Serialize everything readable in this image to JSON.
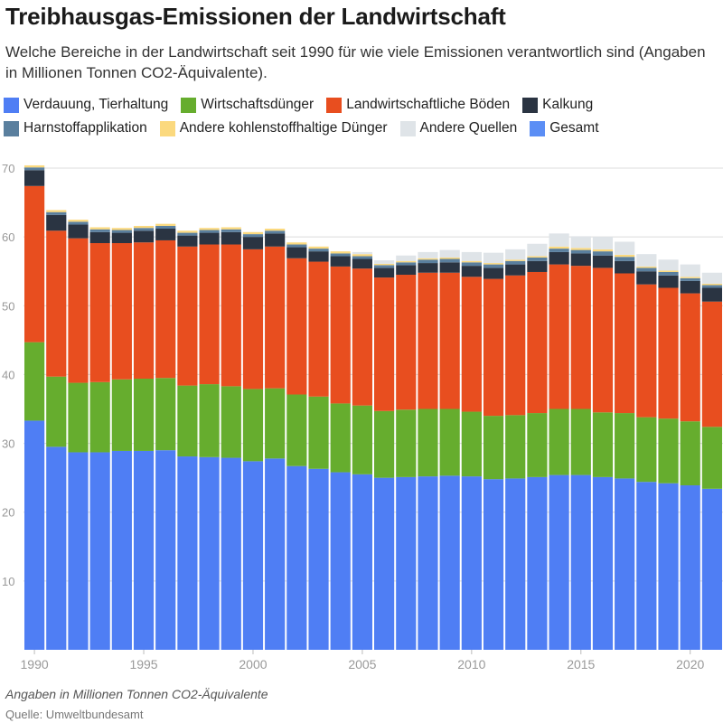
{
  "title": "Treibhausgas-Emissionen der Landwirtschaft",
  "subtitle": "Welche Bereiche in der Landwirtschaft seit 1990 für wie viele Emissionen verantwortlich sind (Angaben in Millionen Tonnen CO2-Äquivalente).",
  "footnote": "Angaben in Millionen Tonnen CO2-Äquivalente",
  "source": "Quelle: Umweltbundesamt",
  "colors": {
    "verdauung": "#4f7ef4",
    "duenger": "#66ad2e",
    "boeden": "#e84e1f",
    "kalkung": "#2a3442",
    "harnstoff": "#5a7f9e",
    "andere_duenger": "#fbd97e",
    "andere_quellen": "#dfe4e8",
    "gesamt": "#5b8ef5",
    "grid": "#dcdcdc",
    "tick": "#999999"
  },
  "legend": [
    {
      "label": "Verdauung, Tierhaltung",
      "color": "#4f7ef4"
    },
    {
      "label": "Wirtschaftsdünger",
      "color": "#66ad2e"
    },
    {
      "label": "Landwirtschaftliche Böden",
      "color": "#e84e1f"
    },
    {
      "label": "Kalkung",
      "color": "#2a3442"
    },
    {
      "label": "Harnstoffapplikation",
      "color": "#5a7f9e"
    },
    {
      "label": "Andere kohlenstoffhaltige Dünger",
      "color": "#fbd97e"
    },
    {
      "label": "Andere Quellen",
      "color": "#dfe4e8"
    },
    {
      "label": "Gesamt",
      "color": "#5b8ef5"
    }
  ],
  "chart_data": {
    "type": "bar",
    "stacked": true,
    "title": "Treibhausgas-Emissionen der Landwirtschaft",
    "xlabel": "",
    "ylabel": "",
    "ylim": [
      0,
      70
    ],
    "yticks": [
      10,
      20,
      30,
      40,
      50,
      60,
      70
    ],
    "xticks": [
      1990,
      1995,
      2000,
      2005,
      2010,
      2015,
      2020
    ],
    "grid": true,
    "legend_position": "top",
    "categories": [
      1990,
      1991,
      1992,
      1993,
      1994,
      1995,
      1996,
      1997,
      1998,
      1999,
      2000,
      2001,
      2002,
      2003,
      2004,
      2005,
      2006,
      2007,
      2008,
      2009,
      2010,
      2011,
      2012,
      2013,
      2014,
      2015,
      2016,
      2017,
      2018,
      2019,
      2020,
      2021
    ],
    "series": [
      {
        "name": "Verdauung, Tierhaltung",
        "color": "#4f7ef4",
        "values": [
          33.3,
          29.5,
          28.7,
          28.7,
          28.9,
          28.9,
          29.0,
          28.1,
          28.0,
          27.9,
          27.4,
          27.8,
          26.7,
          26.3,
          25.8,
          25.5,
          25.0,
          25.1,
          25.2,
          25.3,
          25.2,
          24.8,
          24.9,
          25.1,
          25.4,
          25.4,
          25.1,
          24.9,
          24.4,
          24.2,
          23.9,
          23.4
        ]
      },
      {
        "name": "Wirtschaftsdünger",
        "color": "#66ad2e",
        "values": [
          11.4,
          10.2,
          10.1,
          10.2,
          10.4,
          10.5,
          10.5,
          10.3,
          10.6,
          10.4,
          10.5,
          10.2,
          10.4,
          10.5,
          10.0,
          10.0,
          9.7,
          9.8,
          9.8,
          9.7,
          9.4,
          9.2,
          9.2,
          9.3,
          9.6,
          9.6,
          9.4,
          9.5,
          9.4,
          9.4,
          9.3,
          9.0
        ]
      },
      {
        "name": "Landwirtschaftliche Böden",
        "color": "#e84e1f",
        "values": [
          22.7,
          21.2,
          21.0,
          20.2,
          19.8,
          19.8,
          20.0,
          20.2,
          20.3,
          20.6,
          20.3,
          20.6,
          19.8,
          19.6,
          19.9,
          19.9,
          19.4,
          19.6,
          19.8,
          19.8,
          19.6,
          19.9,
          20.3,
          20.5,
          21.0,
          20.8,
          21.0,
          20.3,
          19.3,
          19.0,
          18.6,
          18.2
        ]
      },
      {
        "name": "Kalkung",
        "color": "#2a3442",
        "values": [
          2.3,
          2.3,
          2.0,
          1.6,
          1.5,
          1.7,
          1.7,
          1.6,
          1.7,
          1.8,
          1.8,
          1.9,
          1.6,
          1.5,
          1.5,
          1.4,
          1.4,
          1.4,
          1.4,
          1.5,
          1.6,
          1.6,
          1.6,
          1.6,
          1.8,
          1.8,
          1.8,
          1.8,
          1.9,
          1.8,
          1.8,
          2.0
        ]
      },
      {
        "name": "Harnstoffapplikation",
        "color": "#5a7f9e",
        "values": [
          0.4,
          0.4,
          0.4,
          0.4,
          0.4,
          0.4,
          0.4,
          0.4,
          0.4,
          0.4,
          0.4,
          0.4,
          0.4,
          0.4,
          0.4,
          0.4,
          0.4,
          0.4,
          0.5,
          0.5,
          0.5,
          0.5,
          0.5,
          0.5,
          0.5,
          0.5,
          0.6,
          0.6,
          0.5,
          0.5,
          0.4,
          0.4
        ]
      },
      {
        "name": "Andere kohlenstoffhaltige Dünger",
        "color": "#fbd97e",
        "values": [
          0.3,
          0.3,
          0.3,
          0.3,
          0.3,
          0.3,
          0.3,
          0.3,
          0.3,
          0.3,
          0.3,
          0.3,
          0.3,
          0.3,
          0.3,
          0.3,
          0.2,
          0.2,
          0.2,
          0.2,
          0.2,
          0.2,
          0.2,
          0.2,
          0.3,
          0.3,
          0.3,
          0.3,
          0.2,
          0.2,
          0.2,
          0.2
        ]
      },
      {
        "name": "Andere Quellen",
        "color": "#dfe4e8",
        "values": [
          0.0,
          0.0,
          0.0,
          0.0,
          0.0,
          0.0,
          0.0,
          0.0,
          0.0,
          0.0,
          0.0,
          0.0,
          0.0,
          0.0,
          0.0,
          0.3,
          0.5,
          0.8,
          0.9,
          1.1,
          1.3,
          1.5,
          1.5,
          1.8,
          1.9,
          1.7,
          1.8,
          1.9,
          1.8,
          1.6,
          1.8,
          1.6
        ]
      }
    ]
  }
}
